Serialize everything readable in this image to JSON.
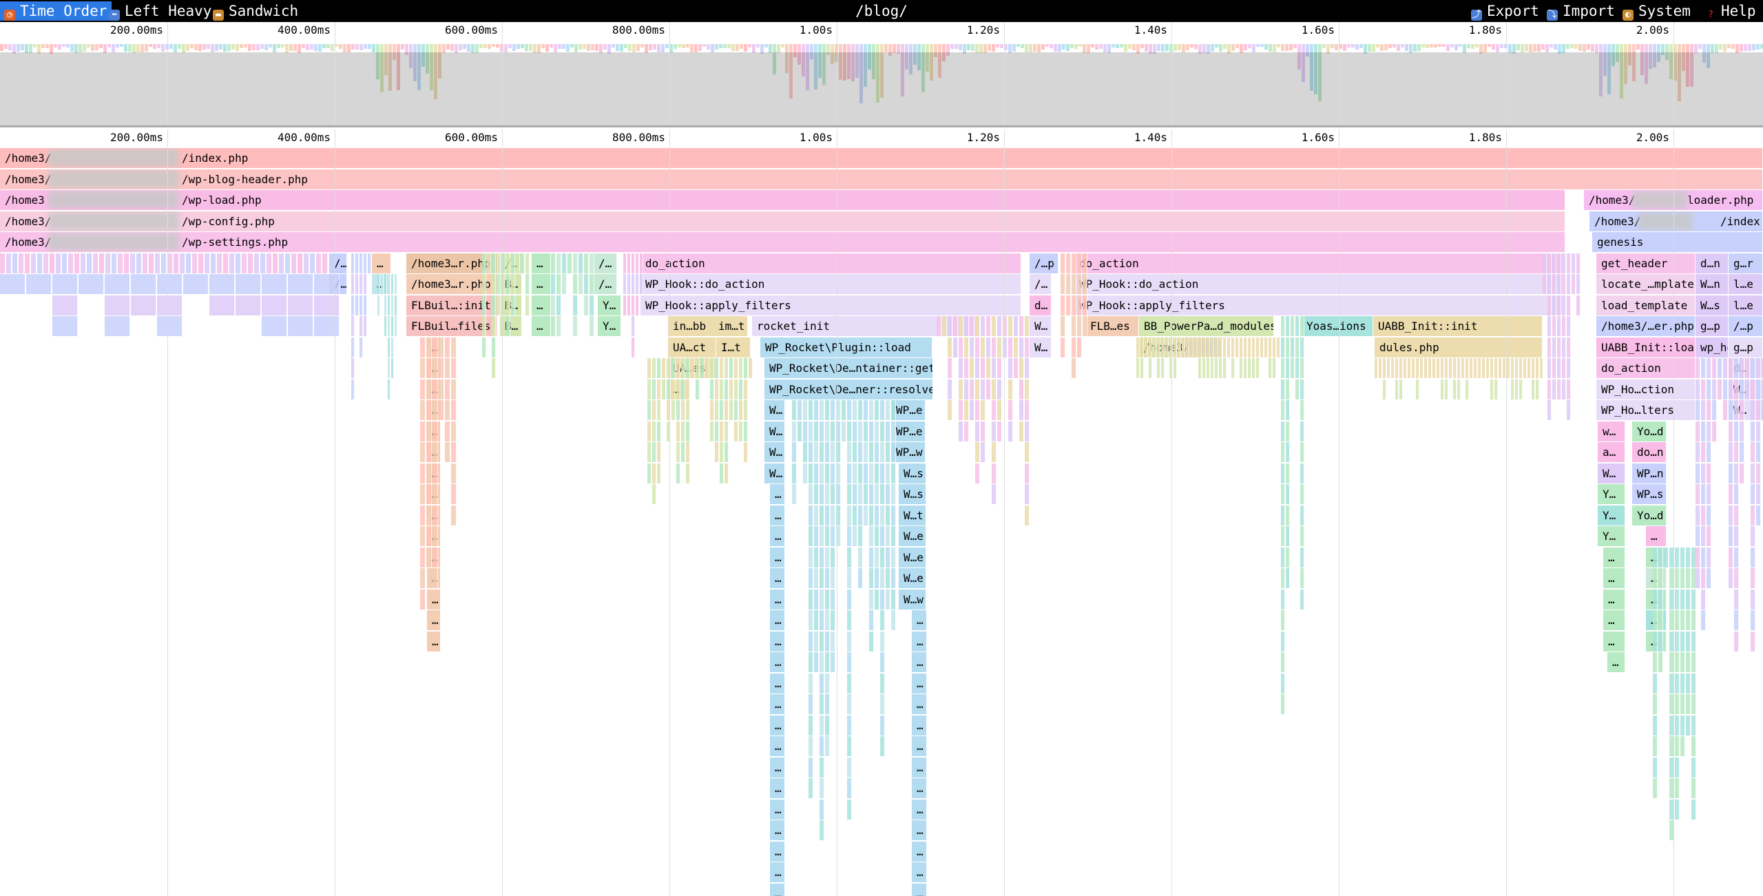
{
  "toolbar": {
    "views": [
      {
        "label": "Time Order",
        "icon": "clock-icon",
        "active": true
      },
      {
        "label": "Left Heavy",
        "icon": "left-arrow-icon",
        "active": false
      },
      {
        "label": "Sandwich",
        "icon": "sandwich-icon",
        "active": false
      }
    ],
    "title": "/blog/",
    "actions": [
      {
        "label": "Export",
        "icon": "export-icon"
      },
      {
        "label": "Import",
        "icon": "import-icon"
      },
      {
        "label": "System",
        "icon": "theme-icon"
      },
      {
        "label": "Help",
        "icon": "help-icon"
      }
    ]
  },
  "ruler_ticks": [
    "200.00ms",
    "400.00ms",
    "600.00ms",
    "800.00ms",
    "1.00s",
    "1.20s",
    "1.40s",
    "1.60s",
    "1.80s",
    "2.00s"
  ],
  "colors": {
    "toolbar_bg": "#000000",
    "active_view": "#2c7be5",
    "frame_palette": [
      "#ffb8b8",
      "#f9bcd8",
      "#f0c2ec",
      "#ddcaf7",
      "#c7d1fc",
      "#b3dcf1",
      "#a7e3dd",
      "#b7e9c3",
      "#d4e7b1",
      "#ecdcae",
      "#f3cdb4",
      "#ffc3b8"
    ]
  },
  "flame_rows": [
    [
      {
        "label": "/home3/",
        "name2": "/index.php",
        "depth": 0
      }
    ],
    [
      {
        "label": "/home3/",
        "name2": "/wp-blog-header.php",
        "depth": 1
      }
    ],
    [
      {
        "label": "/home3",
        "name2": "/wp-load.php",
        "depth": 2
      },
      {
        "label": "/home3/",
        "name2": "loader.php",
        "depth": 2
      }
    ],
    [
      {
        "label": "/home3/",
        "name2": "/wp-config.php",
        "depth": 3
      },
      {
        "label": "/home3/",
        "name2": "/index.php",
        "depth": 3
      }
    ],
    [
      {
        "label": "/home3/",
        "name2": "/wp-settings.php",
        "depth": 4
      },
      {
        "label": "genesis",
        "depth": 4
      }
    ]
  ],
  "frames": {
    "d5": [
      "/…",
      "…",
      "/home3…r.php",
      "/…",
      "…",
      "/…",
      "do_action",
      "/…p",
      "do_action",
      "get_header",
      "d…n",
      "g…r"
    ],
    "d6": [
      "/…",
      "…",
      "/home3…r.php",
      "B…",
      "…",
      "/…",
      "WP_Hook::do_action",
      "/…",
      "WP_Hook::do_action",
      "locate_…mplate",
      "W…n",
      "l…e"
    ],
    "d7": [
      "FLBuil…:init",
      "B…",
      "…",
      "Y…",
      "WP_Hook::apply_filters",
      "d…",
      "WP_Hook::apply_filters",
      "load_template",
      "W…s",
      "l…e"
    ],
    "d8": [
      "FLBuil…files",
      "B…",
      "…",
      "Y…",
      "in…bb",
      "im…t",
      "rocket_init",
      "W…",
      "FLB…es",
      "BB_PowerPa…d_modules",
      "Yoas…ions",
      "UABB_Init::init",
      "/home3/…er.php",
      "g…p",
      "/…p"
    ],
    "d9": [
      "…",
      "UA…ct",
      "I…t",
      "WP_Rocket\\Plugin::load",
      "W…",
      "/home3/",
      "dules.php",
      "UABB_Init::load_modules",
      "wp_head",
      "g…p",
      "W…"
    ],
    "d10": [
      "…",
      "UA…es",
      "WP_Rocket\\De…ntainer::get",
      "do_action",
      "d…"
    ],
    "d11": [
      "…",
      "…",
      "WP_Rocket\\De…ner::resolve",
      "WP_Ho…ction",
      "W…"
    ],
    "d12": [
      "…",
      "W…",
      "WP…e",
      "WP_Ho…lters",
      "W…"
    ],
    "d13": [
      "…",
      "W…",
      "WP…e",
      "w…",
      "Yo…d"
    ],
    "d14": [
      "…",
      "W…",
      "WP…w",
      "a…",
      "do…n"
    ],
    "d15": [
      "…",
      "W…",
      "W…s",
      "W…",
      "WP…n"
    ],
    "d16": [
      "…",
      "…",
      "W…s",
      "Y…",
      "WP…s"
    ],
    "d17": [
      "…",
      "…",
      "W…t",
      "Y…",
      "Yo…d"
    ],
    "d18": [
      "…",
      "…",
      "W…e",
      "Y…",
      "…"
    ],
    "d19": [
      "…",
      "…",
      "W…e",
      "…",
      "…"
    ],
    "d20": [
      "…",
      "…",
      "W…e",
      "…",
      "…"
    ],
    "d21": [
      "…",
      "…",
      "W…w",
      "…",
      "…"
    ],
    "d22": [
      "…",
      "…",
      "…",
      "…",
      "…"
    ],
    "d23": [
      "…",
      "…",
      "…",
      "…",
      "…"
    ],
    "d24": [
      "…",
      "…",
      "…"
    ],
    "d25": [
      "…",
      "…"
    ],
    "d26": [
      "…",
      "…"
    ],
    "d27": [
      "…",
      "…"
    ],
    "d28": [
      "…",
      "…"
    ],
    "d29": [
      "…",
      "…"
    ],
    "d30": [
      "…",
      "…"
    ],
    "d31": [
      "…",
      "…"
    ],
    "d32": [
      "…",
      "…"
    ],
    "d33": [
      "…",
      "…"
    ],
    "d34": [
      "…",
      "…"
    ],
    "d35": [
      "…",
      "…"
    ],
    "d36": [
      "…",
      "…"
    ]
  }
}
